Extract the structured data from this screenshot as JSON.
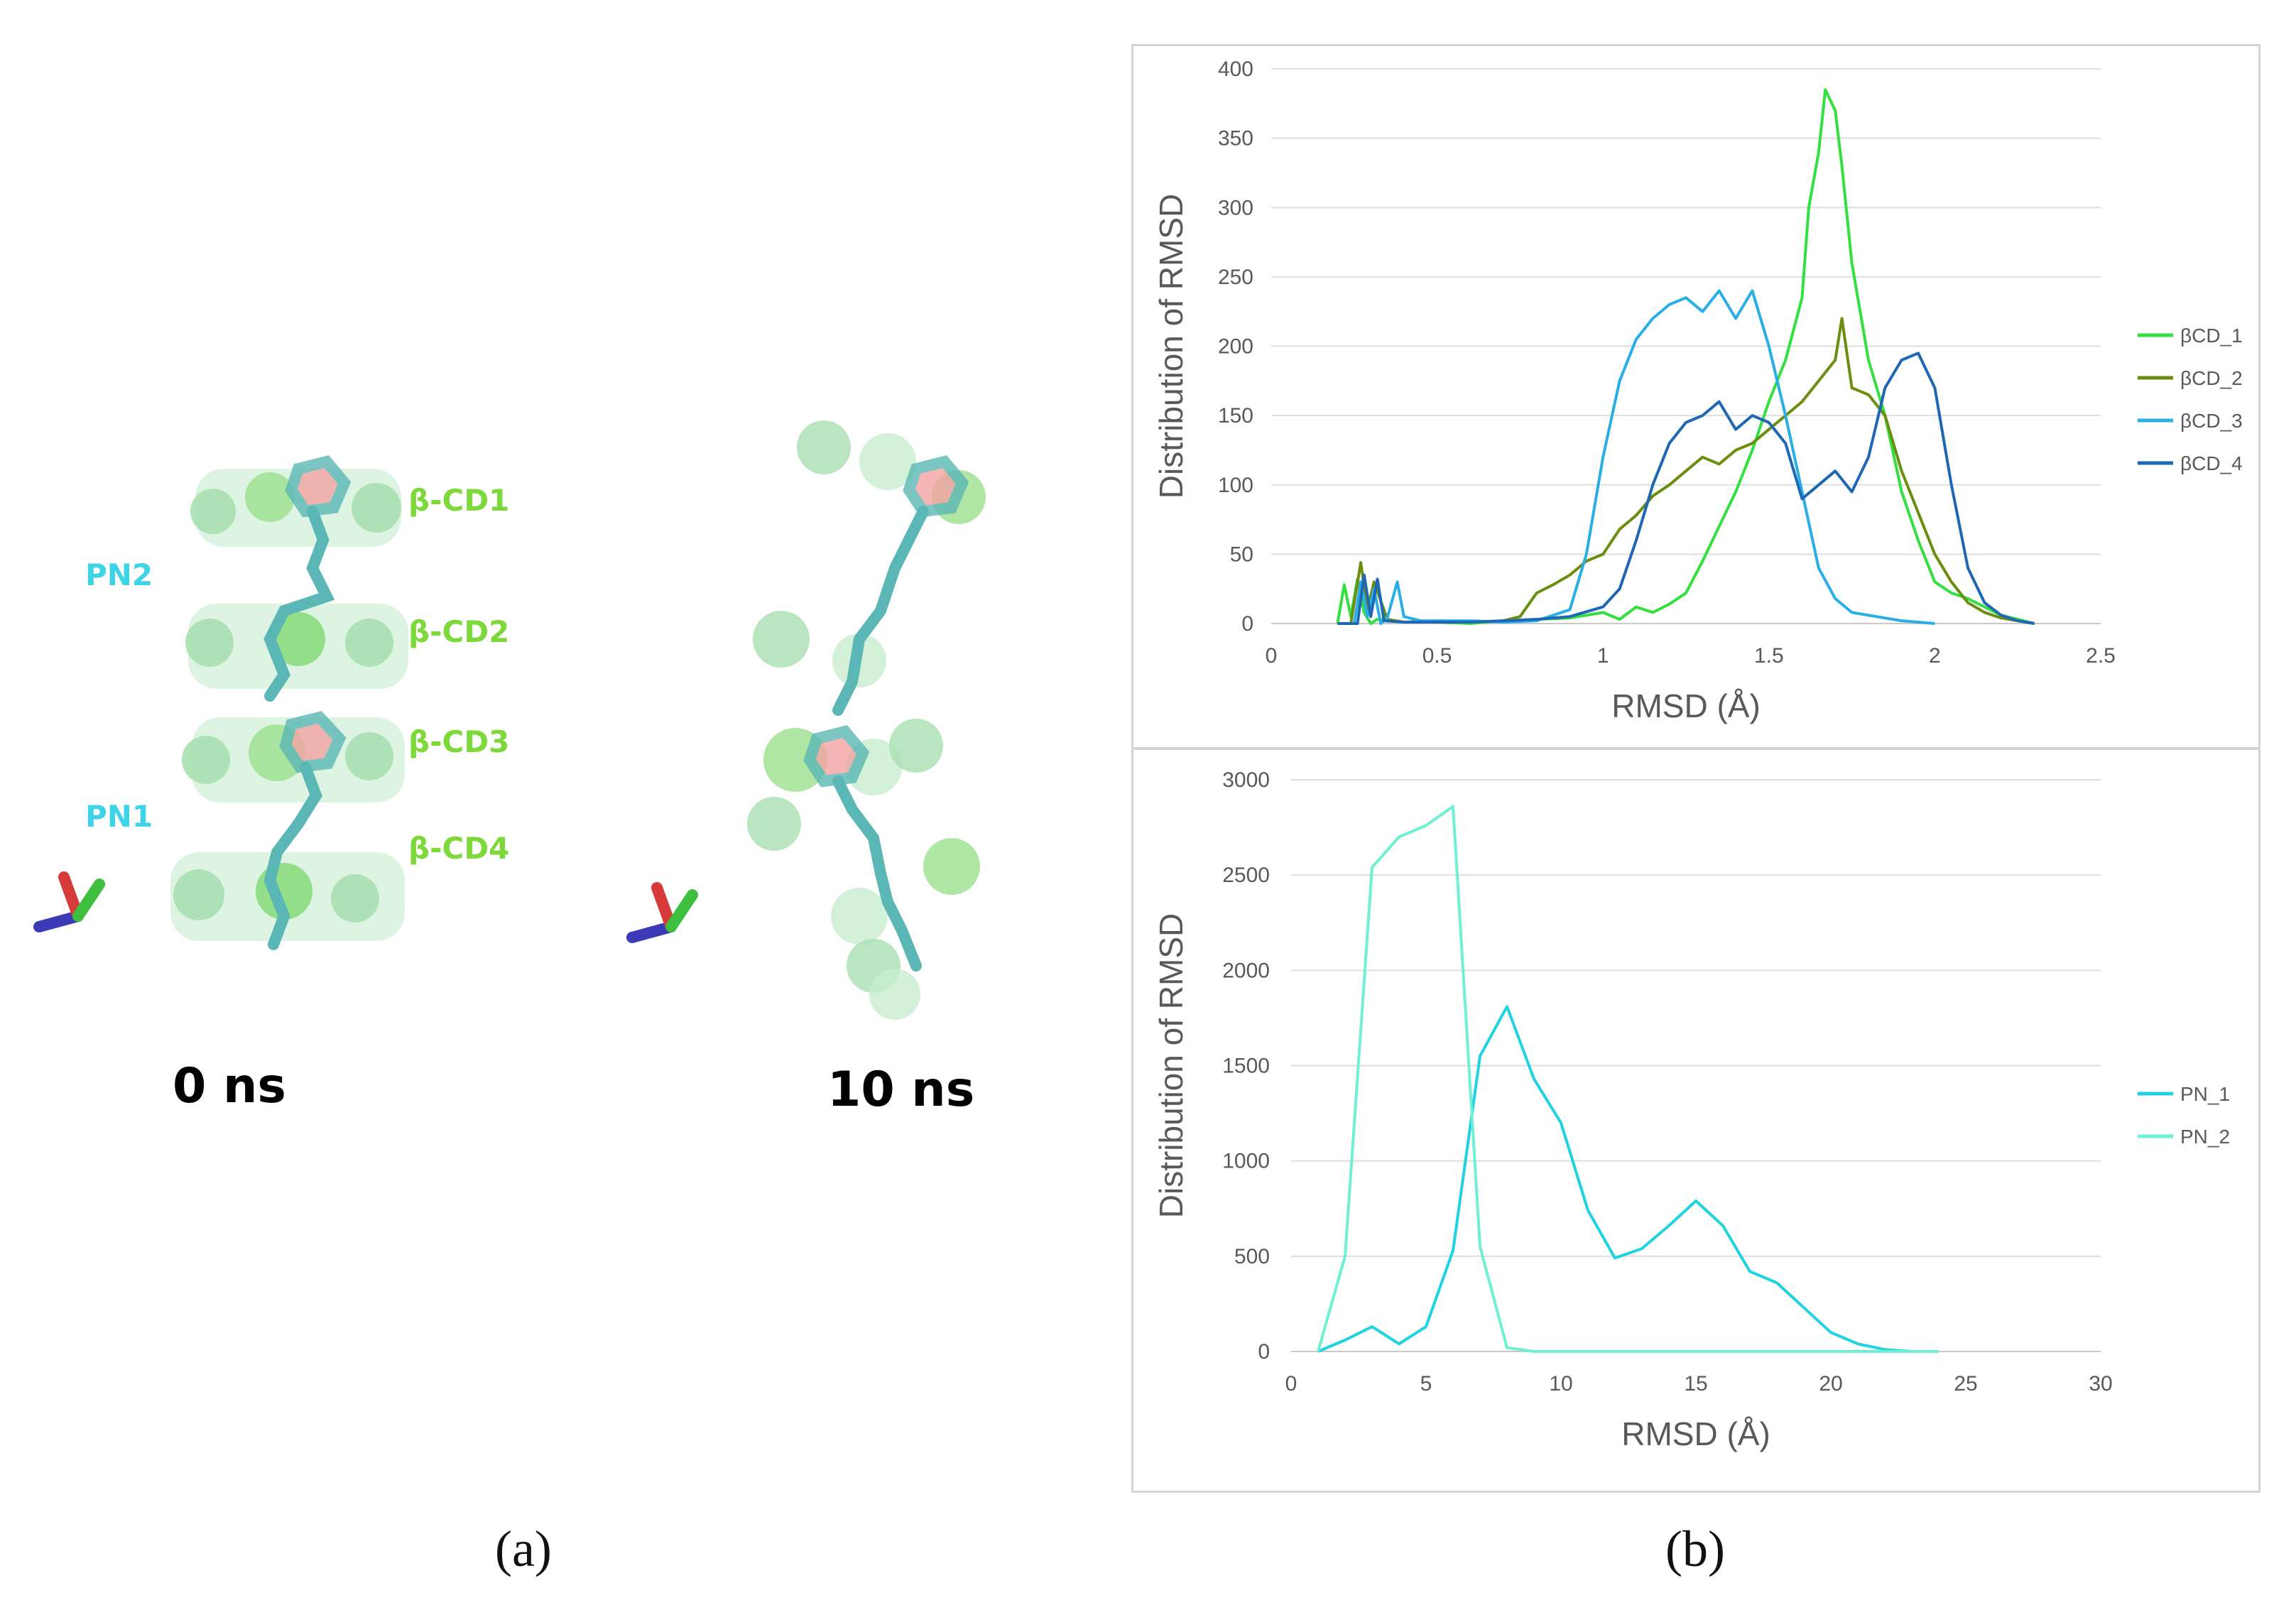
{
  "panel_a": {
    "label": "(a)",
    "left_labels": [
      "β-CD1",
      "β-CD2",
      "β-CD3",
      "β-CD4"
    ],
    "pn_labels": [
      "PN2",
      "PN1"
    ],
    "time_left": "0 ns",
    "time_right": "10 ns",
    "colors": {
      "cd": "#7dd83a",
      "pn": "#3fd3e8",
      "molecule": "#5bb7b5",
      "ring": "#f3a3a3"
    }
  },
  "panel_b": {
    "label": "(b)"
  },
  "chart_data": [
    {
      "type": "line",
      "title": "",
      "xlabel": "RMSD (Å)",
      "ylabel": "Distribution of RMSD",
      "xlim": [
        0,
        2.5
      ],
      "ylim": [
        0,
        400
      ],
      "xticks": [
        "0",
        "0.5",
        "1",
        "1.5",
        "2",
        "2.5"
      ],
      "yticks": [
        "0",
        "50",
        "100",
        "150",
        "200",
        "250",
        "300",
        "350",
        "400"
      ],
      "grid": true,
      "legend": "right",
      "series": [
        {
          "name": "βCD_1",
          "color": "#33e040",
          "x": [
            0.2,
            0.22,
            0.24,
            0.26,
            0.28,
            0.3,
            0.32,
            0.35,
            0.4,
            0.5,
            0.6,
            0.7,
            0.8,
            0.9,
            1.0,
            1.05,
            1.1,
            1.15,
            1.2,
            1.25,
            1.3,
            1.35,
            1.4,
            1.45,
            1.5,
            1.55,
            1.6,
            1.62,
            1.65,
            1.67,
            1.7,
            1.72,
            1.75,
            1.8,
            1.85,
            1.9,
            1.95,
            2.0,
            2.05,
            2.1,
            2.15,
            2.2,
            2.25,
            2.3
          ],
          "y": [
            0,
            28,
            5,
            32,
            8,
            0,
            3,
            2,
            1,
            1,
            0,
            2,
            3,
            4,
            8,
            3,
            12,
            8,
            14,
            22,
            45,
            70,
            95,
            125,
            160,
            190,
            235,
            300,
            340,
            385,
            370,
            330,
            260,
            190,
            150,
            95,
            60,
            30,
            22,
            18,
            12,
            6,
            3,
            0
          ]
        },
        {
          "name": "βCD_2",
          "color": "#6b8e10",
          "x": [
            0.2,
            0.24,
            0.27,
            0.29,
            0.31,
            0.35,
            0.4,
            0.5,
            0.6,
            0.7,
            0.75,
            0.8,
            0.85,
            0.9,
            0.95,
            1.0,
            1.05,
            1.1,
            1.15,
            1.2,
            1.25,
            1.3,
            1.35,
            1.4,
            1.45,
            1.5,
            1.55,
            1.6,
            1.65,
            1.7,
            1.72,
            1.75,
            1.8,
            1.85,
            1.9,
            1.95,
            2.0,
            2.05,
            2.1,
            2.15,
            2.2,
            2.25,
            2.3
          ],
          "y": [
            0,
            0,
            44,
            10,
            30,
            3,
            1,
            2,
            1,
            2,
            5,
            22,
            28,
            35,
            45,
            50,
            68,
            78,
            92,
            100,
            110,
            120,
            115,
            125,
            130,
            140,
            150,
            160,
            175,
            190,
            220,
            170,
            165,
            150,
            110,
            80,
            50,
            30,
            15,
            8,
            4,
            2,
            0
          ]
        },
        {
          "name": "βCD_3",
          "color": "#29aee6",
          "x": [
            0.2,
            0.25,
            0.27,
            0.29,
            0.31,
            0.33,
            0.35,
            0.38,
            0.4,
            0.45,
            0.5,
            0.6,
            0.7,
            0.8,
            0.9,
            0.95,
            1.0,
            1.05,
            1.1,
            1.15,
            1.2,
            1.25,
            1.3,
            1.35,
            1.4,
            1.45,
            1.5,
            1.55,
            1.6,
            1.65,
            1.7,
            1.75,
            1.8,
            1.85,
            1.9,
            1.95,
            2.0
          ],
          "y": [
            0,
            0,
            30,
            5,
            25,
            0,
            4,
            30,
            5,
            2,
            2,
            2,
            1,
            2,
            10,
            50,
            120,
            175,
            205,
            220,
            230,
            235,
            225,
            240,
            220,
            240,
            200,
            150,
            95,
            40,
            18,
            8,
            6,
            4,
            2,
            1,
            0
          ]
        },
        {
          "name": "βCD_4",
          "color": "#1f67b3",
          "x": [
            0.2,
            0.26,
            0.28,
            0.3,
            0.32,
            0.34,
            0.4,
            0.5,
            0.6,
            0.7,
            0.8,
            0.9,
            1.0,
            1.05,
            1.1,
            1.15,
            1.2,
            1.25,
            1.3,
            1.35,
            1.4,
            1.45,
            1.5,
            1.55,
            1.6,
            1.65,
            1.7,
            1.75,
            1.8,
            1.85,
            1.9,
            1.95,
            2.0,
            2.05,
            2.1,
            2.15,
            2.2,
            2.25,
            2.3
          ],
          "y": [
            0,
            0,
            35,
            5,
            32,
            2,
            1,
            1,
            1,
            2,
            3,
            5,
            12,
            25,
            60,
            100,
            130,
            145,
            150,
            160,
            140,
            150,
            145,
            130,
            90,
            100,
            110,
            95,
            120,
            170,
            190,
            195,
            170,
            100,
            40,
            15,
            6,
            2,
            0
          ]
        }
      ]
    },
    {
      "type": "line",
      "title": "",
      "xlabel": "RMSD (Å)",
      "ylabel": "Distribution of RMSD",
      "xlim": [
        0,
        30
      ],
      "ylim": [
        0,
        3000
      ],
      "xticks": [
        "0",
        "5",
        "10",
        "15",
        "20",
        "25",
        "30"
      ],
      "yticks": [
        "0",
        "500",
        "1000",
        "1500",
        "2000",
        "2500",
        "3000"
      ],
      "grid": true,
      "legend": "right",
      "series": [
        {
          "name": "PN_1",
          "color": "#1fd3e0",
          "x": [
            1,
            2,
            3,
            4,
            5,
            6,
            7,
            8,
            9,
            10,
            11,
            12,
            13,
            14,
            15,
            16,
            17,
            18,
            19,
            20,
            21,
            22,
            23,
            24
          ],
          "y": [
            0,
            60,
            130,
            40,
            130,
            530,
            1550,
            1810,
            1430,
            1200,
            740,
            490,
            540,
            660,
            790,
            660,
            420,
            360,
            230,
            100,
            40,
            10,
            0,
            0
          ]
        },
        {
          "name": "PN_2",
          "color": "#6ff0d4",
          "x": [
            1,
            2,
            3,
            4,
            5,
            6,
            7,
            8,
            9,
            10,
            11,
            12,
            13,
            14,
            15,
            16,
            17,
            18,
            19,
            20,
            21,
            22,
            23,
            24
          ],
          "y": [
            0,
            500,
            2540,
            2700,
            2760,
            2860,
            550,
            20,
            0,
            0,
            0,
            0,
            0,
            0,
            0,
            0,
            0,
            0,
            0,
            0,
            0,
            0,
            0,
            0
          ]
        }
      ]
    }
  ]
}
